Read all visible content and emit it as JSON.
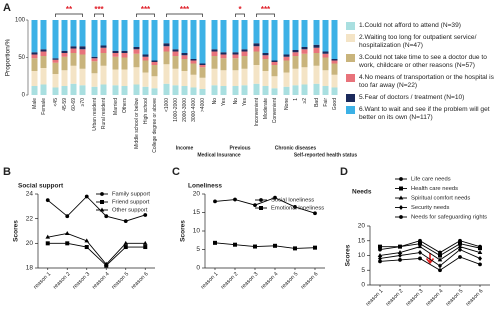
{
  "chart_data": [
    {
      "type": "stacked_bar",
      "panel": "A",
      "y_label": "Proportion/%",
      "ylim": [
        0,
        100
      ],
      "yticks": [
        0,
        50,
        100
      ],
      "groups": [
        {
          "label": null,
          "significance": null,
          "categories": [
            "Male",
            "Female"
          ]
        },
        {
          "label": null,
          "significance": "**",
          "categories": [
            "<45",
            "45-59",
            "60-69",
            "≥70"
          ]
        },
        {
          "label": null,
          "significance": "***",
          "categories": [
            "Urban resident",
            "Rural resident"
          ]
        },
        {
          "label": null,
          "significance": null,
          "categories": [
            "Married",
            "Others"
          ]
        },
        {
          "label": null,
          "significance": "***",
          "categories": [
            "Middle school or below",
            "High school",
            "College degree or above"
          ]
        },
        {
          "label": "Income",
          "significance": "***",
          "categories": [
            "<1000",
            "1000-2000",
            "2000-3000",
            "3000-4000",
            ">4000"
          ]
        },
        {
          "label": "Medical Insurance",
          "significance": null,
          "categories": [
            "No",
            "Yes"
          ]
        },
        {
          "label": "Previous",
          "significance": "*",
          "categories": [
            "No",
            "Yes"
          ]
        },
        {
          "label": null,
          "significance": "***",
          "categories": [
            "Inconvenient",
            "Moderate",
            "Convenient"
          ]
        },
        {
          "label": "Chronic diseases",
          "significance": null,
          "categories": [
            "None",
            "1",
            "≥2"
          ]
        },
        {
          "label": "Self-reported health status",
          "significance": null,
          "categories": [
            "Bad",
            "Fair",
            "Good"
          ]
        }
      ],
      "series": [
        {
          "name": "1.Could not afford to attend (N=39)",
          "color": "#a9dfe0",
          "values": [
            12,
            14,
            10,
            12,
            15,
            13,
            11,
            14,
            13,
            12,
            14,
            11,
            9,
            15,
            13,
            12,
            10,
            8,
            13,
            12,
            12,
            13,
            15,
            12,
            9,
            11,
            13,
            14,
            15,
            12,
            10
          ]
        },
        {
          "name": "2.Waiting too long for outpatient service/ hospitalization (N=47)",
          "color": "#f4e4c6",
          "values": [
            20,
            22,
            18,
            21,
            24,
            22,
            18,
            25,
            21,
            22,
            23,
            19,
            16,
            26,
            22,
            20,
            17,
            15,
            22,
            21,
            21,
            22,
            25,
            20,
            16,
            19,
            22,
            23,
            24,
            21,
            17
          ]
        },
        {
          "name": "3.Could not take time to see a doctor due to work, childcare or other reasons (N=57)",
          "color": "#c9b47c",
          "values": [
            17,
            16,
            15,
            18,
            17,
            19,
            16,
            17,
            17,
            16,
            18,
            16,
            15,
            17,
            17,
            16,
            15,
            14,
            17,
            16,
            16,
            17,
            18,
            16,
            15,
            16,
            17,
            18,
            17,
            17,
            15
          ]
        },
        {
          "name": "4.No means of transportation or the hospital is too far away (N=22)",
          "color": "#e8737b",
          "values": [
            5,
            6,
            4,
            5,
            6,
            7,
            4,
            7,
            5,
            6,
            6,
            5,
            4,
            7,
            6,
            5,
            4,
            3,
            6,
            5,
            5,
            6,
            7,
            5,
            4,
            5,
            5,
            6,
            7,
            5,
            4
          ]
        },
        {
          "name": "5.Fear of doctors / treatment (N=10)",
          "color": "#1b2a5c",
          "values": [
            3,
            3,
            2,
            3,
            3,
            4,
            2,
            3,
            3,
            3,
            3,
            3,
            2,
            4,
            3,
            3,
            2,
            2,
            3,
            3,
            3,
            3,
            4,
            3,
            2,
            3,
            3,
            3,
            4,
            3,
            2
          ]
        },
        {
          "name": "6.Want to wait and see if the problem will get better on its own (N=117)",
          "color": "#3cb1e6",
          "values": [
            43,
            39,
            51,
            41,
            35,
            35,
            49,
            34,
            41,
            41,
            36,
            46,
            54,
            31,
            39,
            44,
            52,
            58,
            39,
            43,
            43,
            39,
            31,
            44,
            54,
            46,
            40,
            36,
            33,
            42,
            52
          ]
        }
      ]
    },
    {
      "type": "line",
      "panel": "B",
      "title": "Social support",
      "y_label": "Scores",
      "categories": [
        "reason 1",
        "reason 2",
        "reason 3",
        "reason 4",
        "reason 5",
        "reason 6"
      ],
      "ylim": [
        18,
        24
      ],
      "yticks": [
        18,
        20,
        22,
        24
      ],
      "series": [
        {
          "name": "Family support",
          "color": "#000000",
          "marker": "circle",
          "values": [
            23.5,
            22.2,
            23.8,
            22.2,
            21.8,
            22.3
          ]
        },
        {
          "name": "Friend support",
          "color": "#000000",
          "marker": "square",
          "values": [
            20.0,
            20.0,
            19.7,
            18.2,
            19.7,
            19.7
          ]
        },
        {
          "name": "Other support",
          "color": "#000000",
          "marker": "triangle",
          "values": [
            20.5,
            20.8,
            20.2,
            18.3,
            20.0,
            20.0
          ]
        }
      ]
    },
    {
      "type": "line",
      "panel": "C",
      "title": "Loneliness",
      "y_label": "Scores",
      "categories": [
        "reason 1",
        "reason 2",
        "reason 3",
        "reason 4",
        "reason 5",
        "reason 6"
      ],
      "ylim": [
        0,
        20
      ],
      "yticks": [
        0,
        5,
        10,
        15,
        20
      ],
      "series": [
        {
          "name": "Social loneliness",
          "color": "#000000",
          "marker": "circle",
          "values": [
            18.0,
            18.5,
            17.0,
            19.0,
            16.5,
            14.8
          ]
        },
        {
          "name": "Emotional loneliness",
          "color": "#000000",
          "marker": "square",
          "values": [
            6.8,
            6.3,
            5.8,
            6.0,
            5.3,
            5.5
          ]
        }
      ]
    },
    {
      "type": "line",
      "panel": "D",
      "title": "Needs",
      "y_label": "Scores",
      "categories": [
        "reason 1",
        "reason 2",
        "reason 3",
        "reason 4",
        "reason 5",
        "reason 6"
      ],
      "ylim": [
        0,
        20
      ],
      "yticks": [
        0,
        5,
        10,
        15,
        20
      ],
      "series": [
        {
          "name": "Life care needs",
          "color": "#000000",
          "marker": "circle",
          "values": [
            12,
            13,
            15,
            11,
            15,
            13
          ]
        },
        {
          "name": "Health care needs",
          "color": "#000000",
          "marker": "square",
          "values": [
            13,
            13,
            14,
            10,
            14,
            12.5
          ]
        },
        {
          "name": "Spiritual comfort needs",
          "color": "#000000",
          "marker": "triangle",
          "values": [
            10,
            11,
            13,
            8.5,
            13,
            11
          ]
        },
        {
          "name": "Security needs",
          "color": "#000000",
          "marker": "diamond",
          "values": [
            9,
            10,
            11,
            6.5,
            12,
            9
          ]
        },
        {
          "name": "Needs for safeguarding rights",
          "color": "#000000",
          "marker": "circle",
          "values": [
            8,
            8.5,
            9,
            5,
            9.5,
            7
          ]
        }
      ]
    }
  ]
}
